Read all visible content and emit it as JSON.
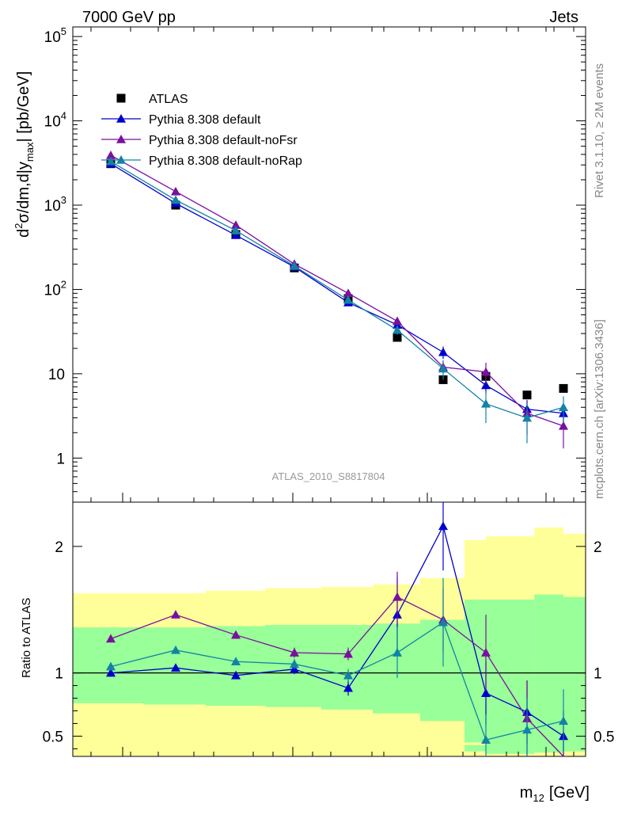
{
  "header": {
    "left_label": "7000 GeV pp",
    "right_label": "Jets"
  },
  "side_labels": {
    "rivet": "Rivet 3.1.10, ≥ 2M events",
    "mcplots": "mcplots.cern.ch [arXiv:1306.3436]"
  },
  "analysis_label": "ATLAS_2010_S8817804",
  "colors": {
    "atlas": "#000000",
    "default": "#0000cc",
    "noFsr": "#7a109e",
    "noRap": "#1283a6",
    "band_yellow": "#ffff99",
    "band_green": "#99ff99"
  },
  "chart_data": [
    {
      "type": "scatter",
      "panel": "main",
      "ylabel": "d²σ/dm,d|y_max| [pb/GeV]",
      "y_scale": "log",
      "ylim": [
        0.3,
        130000
      ],
      "y_ticks": [
        {
          "value": 100000,
          "base": "10",
          "exp": "5"
        },
        {
          "value": 10000,
          "base": "10",
          "exp": "4"
        },
        {
          "value": 1000,
          "base": "10",
          "exp": "3"
        },
        {
          "value": 100,
          "base": "10",
          "exp": "2"
        },
        {
          "value": 10,
          "base": "10",
          "exp": ""
        },
        {
          "value": 1,
          "base": "1",
          "exp": ""
        }
      ],
      "x": [
        1,
        2,
        3,
        4,
        5,
        6,
        7,
        8,
        9,
        10,
        11
      ],
      "legend_position": "top-left",
      "series": [
        {
          "name": "ATLAS",
          "color_key": "atlas",
          "marker": "square",
          "values": [
            3100,
            1000,
            450,
            180,
            78,
            27,
            8.5,
            9.3,
            5.6,
            6.7,
            null
          ]
        },
        {
          "name": "Pythia 8.308 default",
          "color_key": "default",
          "marker": "triangle",
          "values": [
            3100,
            1050,
            440,
            185,
            70,
            38,
            18,
            7.3,
            3.8,
            3.4,
            null
          ],
          "errors": [
            0,
            0,
            0,
            0,
            0,
            3,
            3,
            1.5,
            1,
            0.8,
            null
          ]
        },
        {
          "name": "Pythia 8.308 default-noFsr",
          "color_key": "noFsr",
          "marker": "triangle",
          "values": [
            3900,
            1450,
            580,
            200,
            90,
            42,
            12,
            10.5,
            3.4,
            2.4,
            null
          ],
          "errors": [
            0,
            0,
            0,
            0,
            0,
            4,
            2,
            3,
            1.5,
            1.1,
            null
          ]
        },
        {
          "name": "Pythia 8.308 default-noRap",
          "color_key": "noRap",
          "marker": "triangle",
          "values": [
            3300,
            1150,
            500,
            190,
            75,
            33,
            11.5,
            4.4,
            3.0,
            4.0,
            null
          ],
          "errors": [
            0,
            0,
            0,
            0,
            0,
            4,
            3,
            1.8,
            1.5,
            1.4,
            null
          ]
        }
      ]
    },
    {
      "type": "scatter",
      "panel": "ratio",
      "ylabel": "Ratio to ATLAS",
      "xlabel_main": "m",
      "xlabel_sub": "12",
      "xlabel_unit": "[GeV]",
      "ylim": [
        0.34,
        2.35
      ],
      "y_ticks": [
        0.5,
        1,
        2
      ],
      "y_tick_labels": [
        "0.5",
        "1",
        "2"
      ],
      "reference_line": 1,
      "x": [
        1,
        2,
        3,
        4,
        5,
        6,
        7,
        8,
        9,
        10,
        11
      ],
      "uncertainty_bands": {
        "bin_edges": [
          0.0,
          1.5,
          2.5,
          3.5,
          4.5,
          5.5,
          6.5,
          7.5,
          8.0,
          9.2,
          10.0,
          11.5
        ],
        "yellow_low": [
          0.34,
          0.34,
          0.34,
          0.34,
          0.34,
          0.34,
          0.34,
          0.34,
          0.34,
          0.34,
          0.34
        ],
        "yellow_high": [
          1.63,
          1.63,
          1.65,
          1.67,
          1.68,
          1.7,
          1.75,
          2.05,
          2.08,
          2.15,
          2.1
        ],
        "green_low": [
          0.76,
          0.75,
          0.74,
          0.73,
          0.71,
          0.68,
          0.62,
          0.38,
          0.36,
          0.37,
          0.38
        ],
        "green_high": [
          1.36,
          1.36,
          1.37,
          1.38,
          1.38,
          1.39,
          1.42,
          1.58,
          1.58,
          1.62,
          1.6
        ],
        "extra_yellow_low": [
          null,
          null,
          null,
          null,
          null,
          null,
          null,
          0.43,
          null,
          null,
          null
        ],
        "extra_yellow_high": [
          null,
          null,
          null,
          null,
          null,
          null,
          null,
          0.45,
          null,
          null,
          null
        ]
      },
      "series": [
        {
          "name": "Pythia 8.308 default",
          "color_key": "default",
          "values": [
            1.0,
            1.04,
            0.98,
            1.03,
            0.88,
            1.46,
            2.16,
            0.84,
            0.69,
            0.5,
            null
          ],
          "errors": [
            0.02,
            0.02,
            0.03,
            0.04,
            0.06,
            0.3,
            0.35,
            0.25,
            0.25,
            0.2,
            null
          ]
        },
        {
          "name": "Pythia 8.308 default-noFsr",
          "color_key": "noFsr",
          "values": [
            1.27,
            1.46,
            1.3,
            1.16,
            1.15,
            1.6,
            1.42,
            1.16,
            0.64,
            0.33,
            null
          ],
          "errors": [
            0.02,
            0.03,
            0.03,
            0.04,
            0.05,
            0.2,
            0.25,
            0.3,
            0.3,
            0.15,
            null
          ]
        },
        {
          "name": "Pythia 8.308 default-noRap",
          "color_key": "noRap",
          "values": [
            1.05,
            1.18,
            1.09,
            1.07,
            0.98,
            1.16,
            1.4,
            0.47,
            0.55,
            0.62,
            null
          ],
          "errors": [
            0.02,
            0.03,
            0.03,
            0.04,
            0.05,
            0.2,
            0.35,
            0.2,
            0.25,
            0.25,
            null
          ]
        }
      ]
    }
  ]
}
